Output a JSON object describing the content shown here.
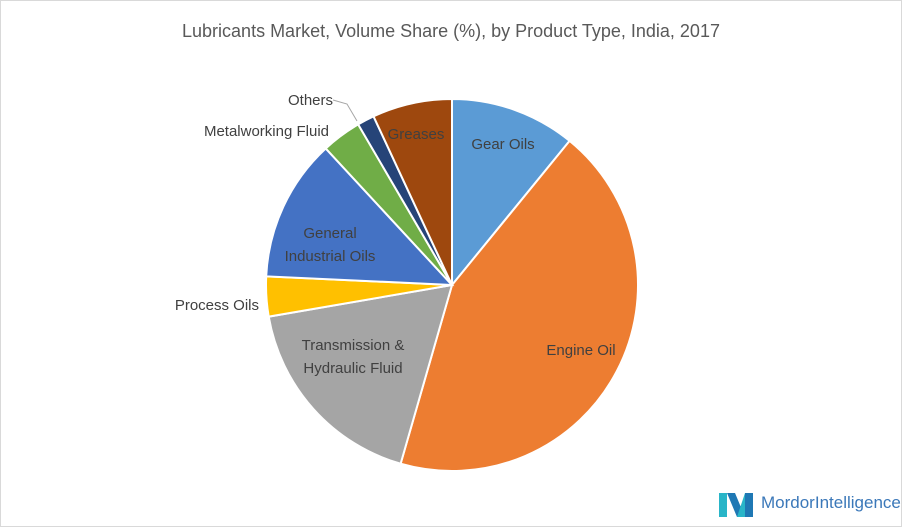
{
  "chart_data": {
    "type": "pie",
    "title": "Lubricants Market, Volume Share (%), by Product Type, India, 2017",
    "slices": [
      {
        "label": "Gear Oils",
        "value": 11,
        "color": "#5b9bd5"
      },
      {
        "label": "Engine Oil",
        "value": 44,
        "color": "#ed7d31"
      },
      {
        "label": "Transmission & Hydraulic Fluid",
        "value": 18,
        "color": "#a5a5a5"
      },
      {
        "label": "Process Oils",
        "value": 3.5,
        "color": "#ffc000"
      },
      {
        "label": "General Industrial Oils",
        "value": 12.5,
        "color": "#4472c4"
      },
      {
        "label": "Metalworking Fluid",
        "value": 3.5,
        "color": "#70ad47"
      },
      {
        "label": "Others",
        "value": 1.5,
        "color": "#264478"
      },
      {
        "label": "Greases",
        "value": 7,
        "color": "#9e480e"
      }
    ]
  },
  "labels": {
    "gear_oils": "Gear Oils",
    "engine_oil": "Engine Oil",
    "transmission_1": "Transmission &",
    "transmission_2": "Hydraulic Fluid",
    "process_oils": "Process Oils",
    "general_1": "General",
    "general_2": "Industrial Oils",
    "metalworking": "Metalworking Fluid",
    "others": "Others",
    "greases": "Greases"
  },
  "logo": {
    "word1": "Mordor",
    "word2": "Intelligence",
    "color": "#3b78b9"
  }
}
